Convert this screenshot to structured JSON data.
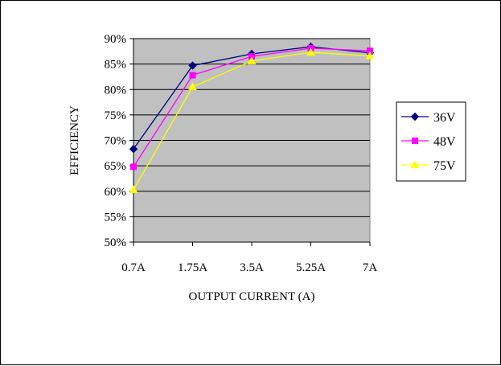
{
  "chart_data": {
    "type": "line",
    "title": "",
    "xlabel": "OUTPUT CURRENT (A)",
    "ylabel": "EFFICIENCY",
    "categories": [
      "0.7A",
      "1.75A",
      "3.5A",
      "5.25A",
      "7A"
    ],
    "y_ticks": [
      "50%",
      "55%",
      "60%",
      "65%",
      "70%",
      "75%",
      "80%",
      "85%",
      "90%"
    ],
    "ylim": [
      50,
      90
    ],
    "y_unit": "%",
    "grid": "horizontal",
    "plot_background": "#c0c0c0",
    "legend_position": "right",
    "series": [
      {
        "name": "36V",
        "values": [
          68.3,
          84.7,
          87.0,
          88.4,
          87.2
        ],
        "color": "#000080",
        "marker": "diamond"
      },
      {
        "name": "48V",
        "values": [
          64.8,
          82.8,
          86.5,
          88.1,
          87.6
        ],
        "color": "#ff00ff",
        "marker": "square"
      },
      {
        "name": "75V",
        "values": [
          60.3,
          80.5,
          85.6,
          87.3,
          86.6
        ],
        "color": "#ffff00",
        "marker": "triangle"
      }
    ]
  }
}
